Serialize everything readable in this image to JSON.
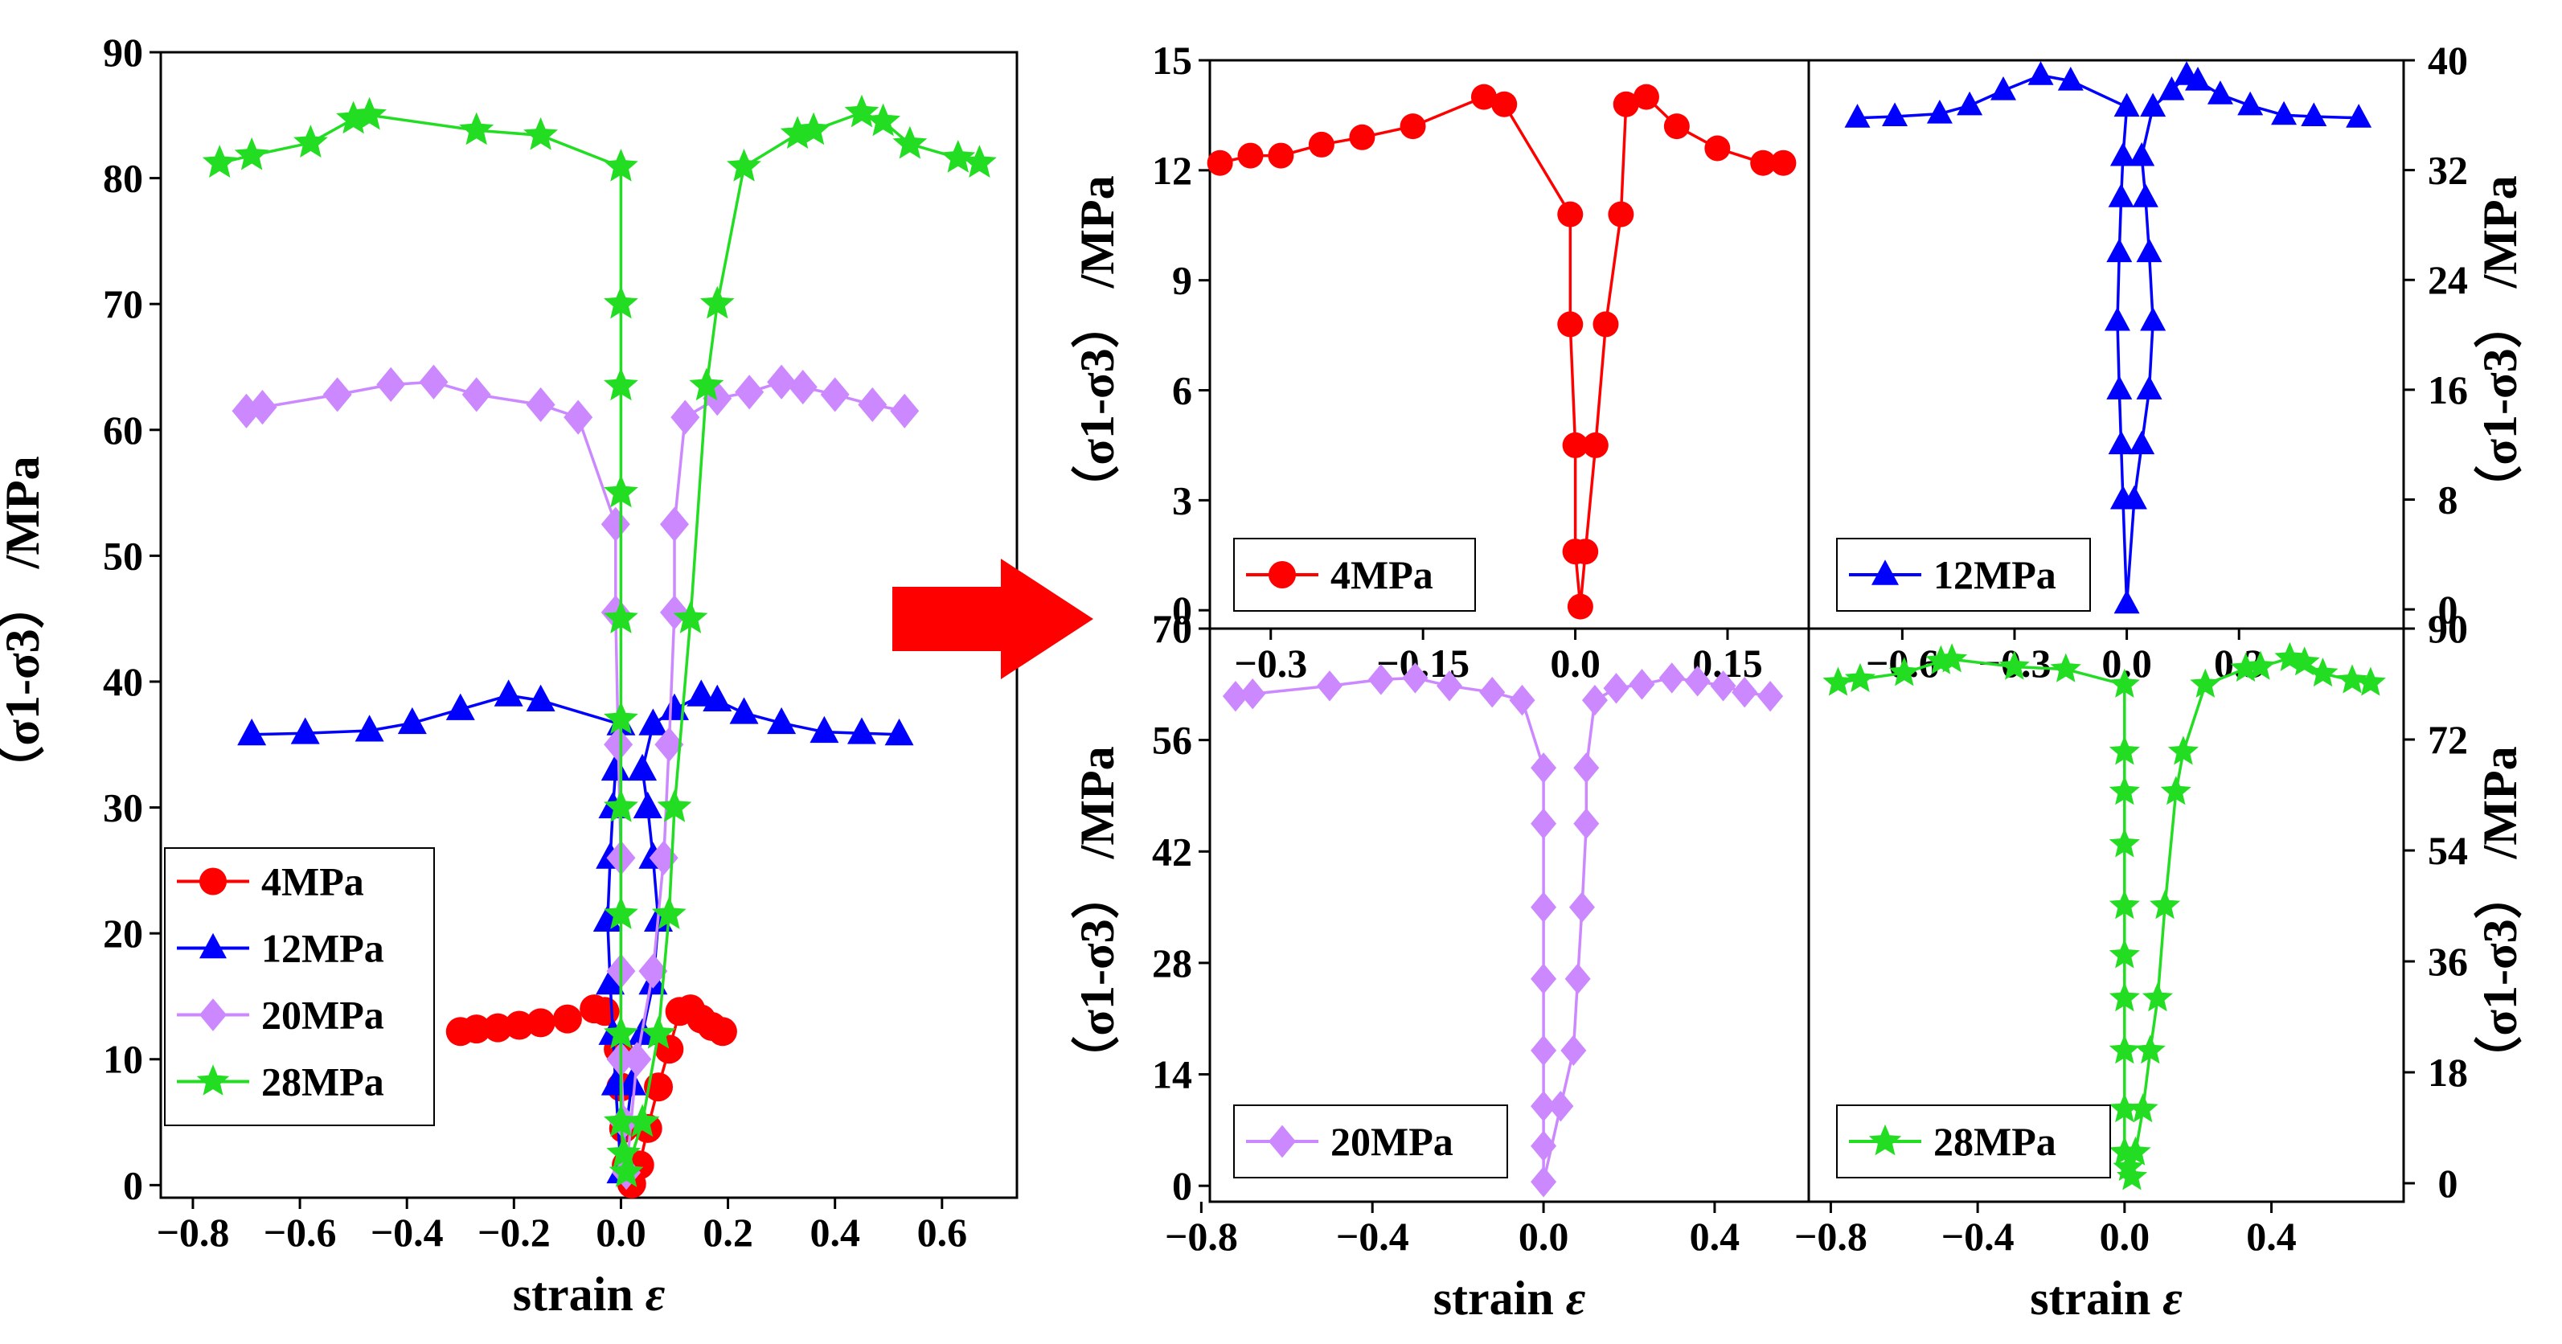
{
  "figure": {
    "arrow_color": "#ff0000"
  },
  "chart_data": [
    {
      "id": "main",
      "type": "line",
      "title": "",
      "xlabel": "strain",
      "xlabel_symbol": "ε",
      "ylabel_prefix": "（σ1-σ3）",
      "ylabel_unit": "/MPa",
      "xlim": [
        -0.86,
        0.74
      ],
      "ylim": [
        -1,
        90
      ],
      "xticks": [
        -0.8,
        -0.6,
        -0.4,
        -0.2,
        0.0,
        0.2,
        0.4,
        0.6
      ],
      "xtick_labels": [
        "−0.8",
        "−0.6",
        "−0.4",
        "−0.2",
        "0.0",
        "0.2",
        "0.4",
        "0.6"
      ],
      "yticks": [
        0,
        10,
        20,
        30,
        40,
        50,
        60,
        70,
        80,
        90
      ],
      "ytick_labels": [
        "0",
        "10",
        "20",
        "30",
        "40",
        "50",
        "60",
        "70",
        "80",
        "90"
      ],
      "legend_position": "bottom-left",
      "series": [
        {
          "name": "4MPa",
          "color": "#ff0000",
          "marker": "circle",
          "x": [
            -0.3,
            -0.27,
            -0.23,
            -0.19,
            -0.15,
            -0.1,
            -0.05,
            -0.03,
            -0.005,
            0.0,
            0.005,
            0.01,
            0.02,
            0.035,
            0.05,
            0.07,
            0.09,
            0.11,
            0.13,
            0.15,
            0.17,
            0.19
          ],
          "y": [
            12.2,
            12.4,
            12.5,
            12.7,
            12.9,
            13.2,
            14.0,
            13.8,
            10.8,
            7.8,
            4.5,
            1.6,
            0.1,
            1.6,
            4.5,
            7.8,
            10.8,
            13.8,
            14.0,
            13.2,
            12.6,
            12.2
          ]
        },
        {
          "name": "12MPa",
          "color": "#0000ff",
          "marker": "triangle",
          "x": [
            -0.69,
            -0.59,
            -0.47,
            -0.39,
            -0.3,
            -0.21,
            -0.15,
            0.0,
            -0.01,
            -0.015,
            -0.02,
            -0.025,
            -0.02,
            -0.015,
            -0.01,
            0.0,
            0.02,
            0.04,
            0.06,
            0.07,
            0.06,
            0.05,
            0.04,
            0.06,
            0.1,
            0.15,
            0.18,
            0.23,
            0.3,
            0.38,
            0.45,
            0.52
          ],
          "y": [
            35.8,
            35.9,
            36.1,
            36.7,
            37.8,
            38.9,
            38.5,
            36.6,
            33,
            30,
            26,
            21,
            16,
            12,
            8,
            1,
            8,
            12,
            16,
            21,
            26,
            30,
            33,
            36.6,
            37.8,
            38.9,
            38.5,
            37.5,
            36.7,
            36.0,
            35.9,
            35.8
          ]
        },
        {
          "name": "20MPa",
          "color": "#cc88ff",
          "marker": "diamond",
          "x": [
            -0.7,
            -0.67,
            -0.53,
            -0.43,
            -0.35,
            -0.27,
            -0.15,
            -0.08,
            -0.01,
            -0.01,
            -0.005,
            0.0,
            0.0,
            0.0,
            0.005,
            0.01,
            0.03,
            0.06,
            0.08,
            0.09,
            0.1,
            0.1,
            0.12,
            0.18,
            0.24,
            0.3,
            0.34,
            0.4,
            0.47,
            0.53
          ],
          "y": [
            61.5,
            61.8,
            62.8,
            63.6,
            63.8,
            62.8,
            62,
            61,
            52.5,
            45.5,
            35,
            26,
            17,
            10,
            5,
            1,
            10,
            17,
            26,
            35,
            45.5,
            52.5,
            61,
            62.5,
            63,
            63.8,
            63.4,
            62.8,
            62.0,
            61.5
          ]
        },
        {
          "name": "28MPa",
          "color": "#22dd22",
          "marker": "star",
          "x": [
            -0.75,
            -0.69,
            -0.58,
            -0.5,
            -0.47,
            -0.27,
            -0.15,
            0.0,
            0.0,
            0.0,
            0.0,
            0.0,
            0.0,
            0.0,
            0.0,
            0.0,
            0.0,
            0.005,
            0.01,
            0.04,
            0.07,
            0.09,
            0.1,
            0.13,
            0.16,
            0.18,
            0.23,
            0.33,
            0.36,
            0.45,
            0.49,
            0.54,
            0.63,
            0.67
          ],
          "y": [
            81.2,
            81.8,
            82.8,
            84.7,
            85.0,
            83.8,
            83.4,
            80.9,
            70,
            63.5,
            55,
            45,
            37,
            30,
            21.5,
            12,
            5,
            2.5,
            1,
            5,
            12,
            21.5,
            30,
            45,
            63.5,
            70,
            80.9,
            83.5,
            83.8,
            85.2,
            84.5,
            82.7,
            81.6,
            81.2
          ]
        }
      ]
    },
    {
      "id": "panel_4",
      "type": "line",
      "xlabel": "",
      "ylabel_prefix": "（σ1-σ3）",
      "ylabel_unit": "/MPa",
      "xlim": [
        -0.36,
        0.23
      ],
      "ylim": [
        -0.5,
        15
      ],
      "xticks": [
        -0.3,
        -0.15,
        0.0,
        0.15
      ],
      "xtick_labels": [
        "−0.3",
        "−0.15",
        "0.0",
        "0.15"
      ],
      "xticks_position": "bottom",
      "yticks": [
        0,
        3,
        6,
        9,
        12,
        15
      ],
      "ytick_labels": [
        "0",
        "3",
        "6",
        "9",
        "12",
        "15"
      ],
      "yaxis_side": "left",
      "legend_position": "bottom-left",
      "series": [
        {
          "name": "4MPa",
          "color": "#ff0000",
          "marker": "circle",
          "x": [
            -0.35,
            -0.32,
            -0.29,
            -0.25,
            -0.21,
            -0.16,
            -0.09,
            -0.07,
            -0.005,
            -0.005,
            0.0,
            0.0,
            0.005,
            0.01,
            0.02,
            0.03,
            0.045,
            0.05,
            0.07,
            0.1,
            0.14,
            0.185,
            0.205
          ],
          "y": [
            12.2,
            12.4,
            12.4,
            12.7,
            12.9,
            13.2,
            14.0,
            13.8,
            10.8,
            7.8,
            4.5,
            1.6,
            0.1,
            1.6,
            4.5,
            7.8,
            10.8,
            13.8,
            14.0,
            13.2,
            12.6,
            12.2,
            12.2
          ]
        }
      ]
    },
    {
      "id": "panel_12",
      "type": "line",
      "xlabel": "",
      "ylabel_prefix": "（σ1-σ3）",
      "ylabel_unit": "/MPa",
      "xlim": [
        -0.85,
        0.74
      ],
      "ylim": [
        -1.4,
        40
      ],
      "xticks": [
        -0.6,
        -0.3,
        0.0,
        0.3
      ],
      "xtick_labels": [
        "−0.6",
        "−0.3",
        "0.0",
        "0.3"
      ],
      "xticks_position": "bottom",
      "yticks": [
        0,
        8,
        16,
        24,
        32,
        40
      ],
      "ytick_labels": [
        "0",
        "8",
        "16",
        "24",
        "32",
        "40"
      ],
      "yaxis_side": "right",
      "legend_position": "bottom-left",
      "series": [
        {
          "name": "12MPa",
          "color": "#0000ff",
          "marker": "triangle",
          "x": [
            -0.72,
            -0.62,
            -0.5,
            -0.42,
            -0.33,
            -0.23,
            -0.15,
            0.0,
            -0.01,
            -0.015,
            -0.02,
            -0.025,
            -0.02,
            -0.015,
            -0.01,
            0.0,
            0.02,
            0.04,
            0.06,
            0.07,
            0.06,
            0.05,
            0.04,
            0.07,
            0.12,
            0.16,
            0.19,
            0.25,
            0.33,
            0.42,
            0.5,
            0.62
          ],
          "y": [
            35.8,
            35.9,
            36.1,
            36.7,
            37.8,
            38.9,
            38.5,
            36.6,
            33,
            30,
            26,
            21,
            16,
            12,
            8,
            0.4,
            8,
            12,
            16,
            21,
            26,
            30,
            33,
            36.6,
            37.8,
            38.9,
            38.5,
            37.5,
            36.7,
            36.0,
            35.9,
            35.8
          ]
        }
      ]
    },
    {
      "id": "panel_20",
      "type": "line",
      "xlabel": "strain",
      "xlabel_symbol": "ε",
      "ylabel_prefix": "（σ1-σ3）",
      "ylabel_unit": "/MPa",
      "xlim": [
        -0.78,
        0.62
      ],
      "ylim": [
        -2,
        70
      ],
      "xticks": [
        -0.8,
        -0.4,
        0.0,
        0.4
      ],
      "xtick_labels": [
        "−0.8",
        "−0.4",
        "0.0",
        "0.4"
      ],
      "xticks_position": "bottom",
      "yticks": [
        0,
        14,
        28,
        42,
        56,
        70
      ],
      "ytick_labels": [
        "0",
        "14",
        "28",
        "42",
        "56",
        "70"
      ],
      "yaxis_side": "left",
      "legend_position": "bottom-left",
      "series": [
        {
          "name": "20MPa",
          "color": "#cc88ff",
          "marker": "diamond",
          "x": [
            -0.72,
            -0.68,
            -0.5,
            -0.38,
            -0.3,
            -0.22,
            -0.12,
            -0.05,
            0.0,
            0.0,
            0.0,
            0.0,
            0.0,
            0.0,
            0.0,
            0.0,
            0.04,
            0.07,
            0.08,
            0.09,
            0.1,
            0.1,
            0.12,
            0.17,
            0.23,
            0.3,
            0.36,
            0.42,
            0.47,
            0.53
          ],
          "y": [
            61.5,
            61.8,
            62.8,
            63.6,
            63.8,
            62.8,
            62,
            61,
            52.5,
            45.5,
            35,
            26,
            17,
            10,
            5,
            0.5,
            10,
            17,
            26,
            35,
            45.5,
            52.5,
            61,
            62.5,
            63,
            63.8,
            63.4,
            62.8,
            62.0,
            61.5
          ]
        }
      ]
    },
    {
      "id": "panel_28",
      "type": "line",
      "xlabel": "strain",
      "xlabel_symbol": "ε",
      "ylabel_prefix": "（σ1-σ3）",
      "ylabel_unit": "/MPa",
      "xlim": [
        -0.86,
        0.76
      ],
      "ylim": [
        -3,
        90
      ],
      "xticks": [
        -0.8,
        -0.4,
        0.0,
        0.4
      ],
      "xtick_labels": [
        "−0.8",
        "−0.4",
        "0.0",
        "0.4"
      ],
      "xticks_position": "bottom",
      "yticks": [
        0,
        18,
        36,
        54,
        72,
        90
      ],
      "ytick_labels": [
        "0",
        "18",
        "36",
        "54",
        "72",
        "90"
      ],
      "yaxis_side": "right",
      "legend_position": "bottom-left",
      "series": [
        {
          "name": "28MPa",
          "color": "#22dd22",
          "marker": "star",
          "x": [
            -0.78,
            -0.72,
            -0.6,
            -0.5,
            -0.47,
            -0.3,
            -0.16,
            0.0,
            0.0,
            0.0,
            0.0,
            0.0,
            0.0,
            0.0,
            0.0,
            0.0,
            0.0,
            0.01,
            0.02,
            0.03,
            0.05,
            0.07,
            0.09,
            0.11,
            0.14,
            0.16,
            0.22,
            0.33,
            0.37,
            0.45,
            0.49,
            0.54,
            0.62,
            0.67
          ],
          "y": [
            81.2,
            81.8,
            82.8,
            84.7,
            85.0,
            83.8,
            83.4,
            80.9,
            70,
            63.5,
            55,
            45,
            37,
            30,
            21.5,
            12,
            5,
            2.5,
            1,
            5,
            12,
            21.5,
            30,
            45,
            63.5,
            70,
            80.9,
            83.5,
            83.8,
            85.2,
            84.5,
            82.7,
            81.6,
            81.2
          ]
        }
      ]
    }
  ]
}
